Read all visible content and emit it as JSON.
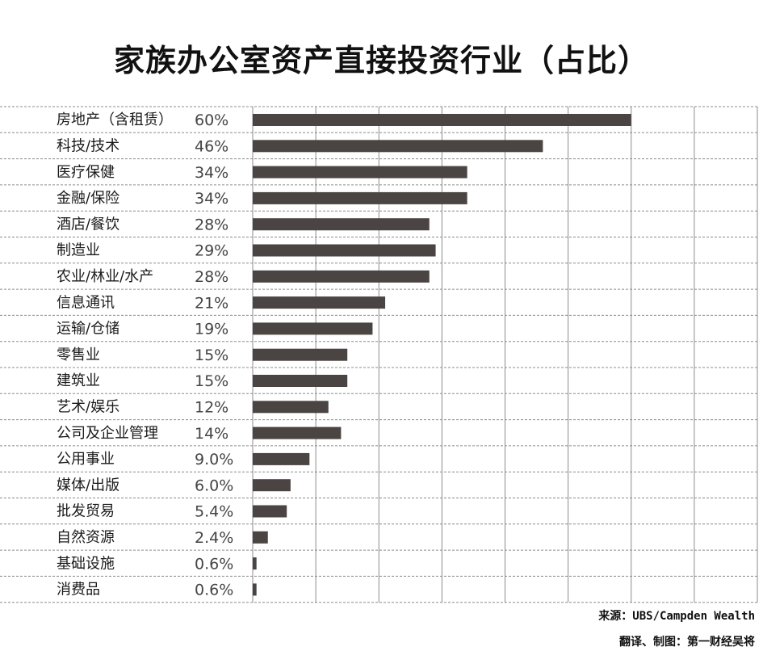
{
  "title": "家族办公室资产直接投资行业（占比）",
  "source": "来源：UBS/Campden Wealth",
  "credit": "翻译、制图：第一财经吴将",
  "colors": {
    "bar": "#4a4542",
    "grid": "#8c8c8c",
    "background": "#ffffff"
  },
  "chart_data": {
    "type": "bar",
    "orientation": "horizontal",
    "title": "家族办公室资产直接投资行业（占比）",
    "xlim": [
      0,
      80
    ],
    "grid": true,
    "categories": [
      "房地产（含租赁）",
      "科技/技术",
      "医疗保健",
      "金融/保险",
      "酒店/餐饮",
      "制造业",
      "农业/林业/水产",
      "信息通讯",
      "运输/仓储",
      "零售业",
      "建筑业",
      "艺术/娱乐",
      "公司及企业管理",
      "公用事业",
      "媒体/出版",
      "批发贸易",
      "自然资源",
      "基础设施",
      "消费品"
    ],
    "values": [
      60,
      46,
      34,
      34,
      28,
      29,
      28,
      21,
      19,
      15,
      15,
      12,
      14,
      9.0,
      6.0,
      5.4,
      2.4,
      0.6,
      0.6
    ],
    "value_labels": [
      "60%",
      "46%",
      "34%",
      "34%",
      "28%",
      "29%",
      "28%",
      "21%",
      "19%",
      "15%",
      "15%",
      "12%",
      "14%",
      "9.0%",
      "6.0%",
      "5.4%",
      "2.4%",
      "0.6%",
      "0.6%"
    ]
  }
}
